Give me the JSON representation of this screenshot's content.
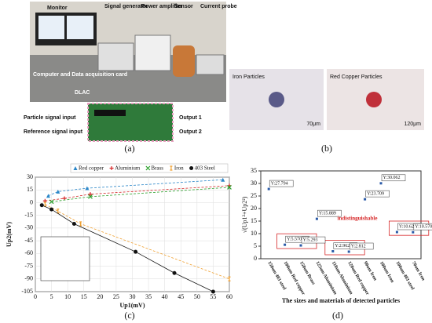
{
  "panel_a": {
    "labels": [
      "Monitor",
      "Signal generator",
      "Power amplifier",
      "Sensor",
      "Current probe",
      "Computer and Data acquisition card",
      "DLAC",
      "Particle signal input",
      "Reference signal input",
      "Output 1",
      "Output 2"
    ],
    "caption": "(a)"
  },
  "panel_b": {
    "images": [
      {
        "title": "Iron Particles",
        "scale": "70μm"
      },
      {
        "title": "Red Copper Particles",
        "scale": "120μm"
      }
    ],
    "caption": "(b)"
  },
  "chart_data": [
    {
      "type": "line",
      "caption": "(c)",
      "x_label": "Up1(mV)",
      "y_label": "Up2(mV)",
      "xlim": [
        0,
        60
      ],
      "ylim": [
        -105,
        30
      ],
      "xticks": [
        0,
        5,
        10,
        15,
        20,
        25,
        30,
        35,
        40,
        45,
        50,
        55,
        60
      ],
      "yticks": [
        30,
        15,
        0,
        -15,
        -30,
        -45,
        -60,
        -75,
        -90,
        -105
      ],
      "grid": true,
      "series": [
        {
          "name": "Red copper",
          "color": "#2a86c8",
          "marker": "triangle",
          "x": [
            4,
            7,
            16,
            58
          ],
          "values": [
            8,
            13,
            17,
            27
          ]
        },
        {
          "name": "Aluminium",
          "color": "#d62728",
          "marker": "plus",
          "x": [
            3,
            9,
            17,
            60
          ],
          "values": [
            2,
            5,
            10,
            20
          ]
        },
        {
          "name": "Brass",
          "color": "#2ca02c",
          "marker": "cross",
          "x": [
            5,
            17,
            60
          ],
          "values": [
            1,
            7,
            18
          ]
        },
        {
          "name": "Iron",
          "color": "#f0a030",
          "marker": "bar",
          "x": [
            3,
            7,
            14,
            60
          ],
          "values": [
            -2,
            -10,
            -25,
            -90
          ]
        },
        {
          "name": "403 Steel",
          "color": "#111111",
          "marker": "circle",
          "x": [
            2,
            5,
            12,
            31,
            43,
            55
          ],
          "values": [
            -3,
            -8,
            -25,
            -58,
            -83,
            -105
          ]
        }
      ]
    },
    {
      "type": "scatter",
      "caption": "(d)",
      "x_label": "The sizes and materials of detected particles",
      "y_label": "√(Up1²+Up2²)",
      "annotation": "indistinguishable",
      "color": "#2a5aa8",
      "ylim": [
        0,
        35
      ],
      "yticks": [
        0,
        5,
        10,
        15,
        20,
        25,
        30,
        35
      ],
      "categories": [
        "150um 403 steel",
        "100um Red copper",
        "150um Brass",
        "125um Aluminium",
        "110um Aluminium",
        "120um Red copper",
        "90um Iron",
        "100um Iron",
        "100um 403 steel",
        "70um Iron"
      ],
      "values": [
        27.794,
        5.57,
        5.293,
        15.889,
        2.962,
        2.812,
        23.709,
        30.062,
        10.626,
        10.57
      ],
      "value_labels": [
        "Y:27.794",
        "Y:5.570",
        "Y:5.293",
        "Y:15.889",
        "Y:2.962",
        "Y:2.812",
        "Y:23.709",
        "Y:30.062",
        "Y:10.626",
        "Y:10.570"
      ]
    }
  ]
}
